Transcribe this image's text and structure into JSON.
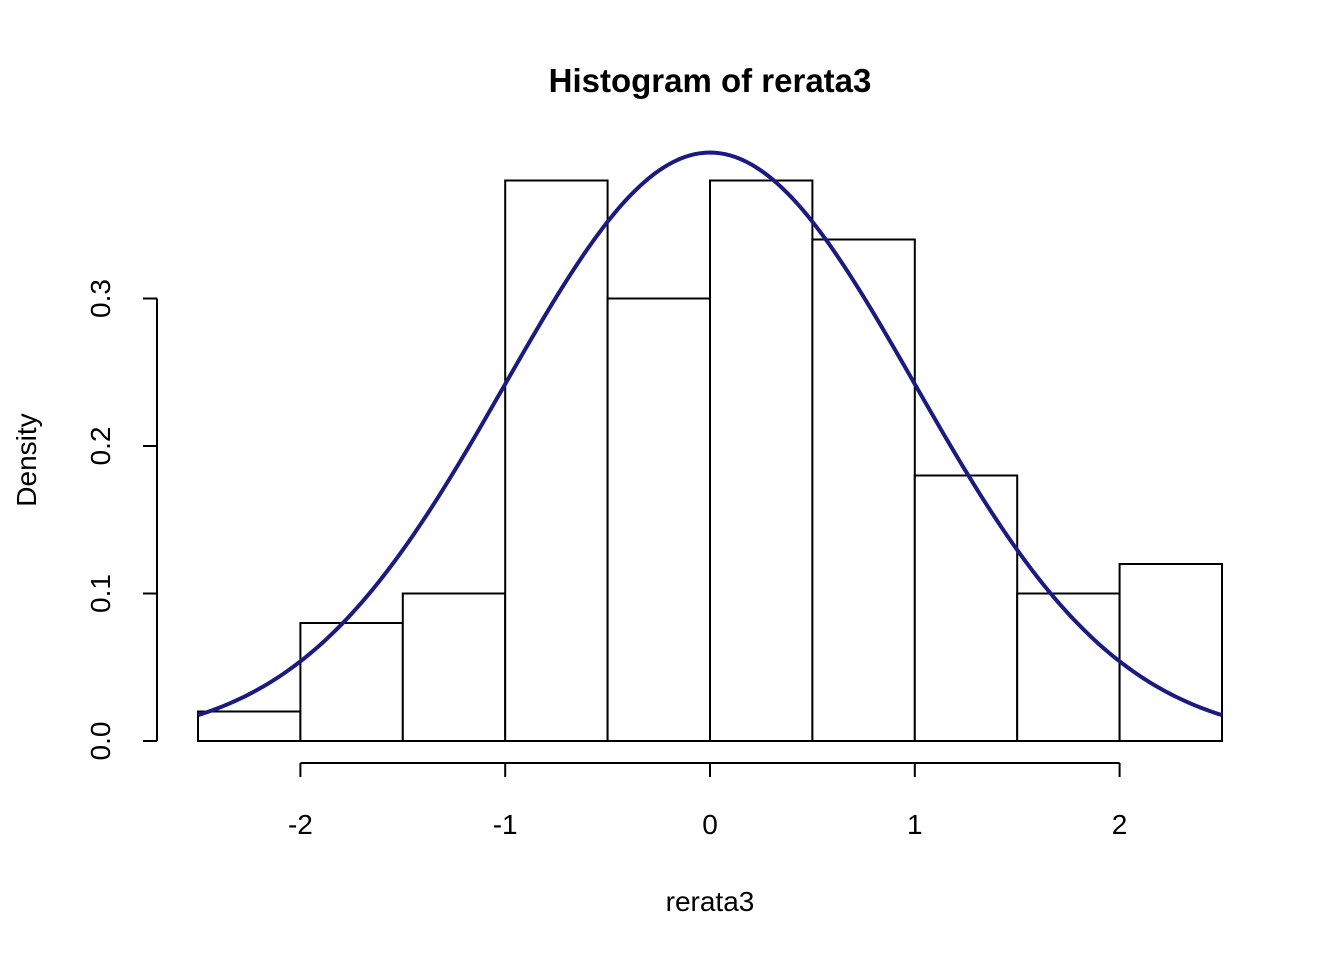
{
  "chart_data": {
    "type": "bar",
    "subtype": "histogram",
    "title": "Histogram of rerata3",
    "xlabel": "rerata3",
    "ylabel": "Density",
    "bins": [
      {
        "start": -2.5,
        "end": -2.0,
        "density": 0.02
      },
      {
        "start": -2.0,
        "end": -1.5,
        "density": 0.08
      },
      {
        "start": -1.5,
        "end": -1.0,
        "density": 0.1
      },
      {
        "start": -1.0,
        "end": -0.5,
        "density": 0.38
      },
      {
        "start": -0.5,
        "end": 0.0,
        "density": 0.3
      },
      {
        "start": 0.0,
        "end": 0.5,
        "density": 0.38
      },
      {
        "start": 0.5,
        "end": 1.0,
        "density": 0.34
      },
      {
        "start": 1.0,
        "end": 1.5,
        "density": 0.18
      },
      {
        "start": 1.5,
        "end": 2.0,
        "density": 0.1
      },
      {
        "start": 2.0,
        "end": 2.5,
        "density": 0.12
      }
    ],
    "x_ticks": [
      -2,
      -1,
      0,
      1,
      2
    ],
    "x_tick_labels": [
      "-2",
      "-1",
      "0",
      "1",
      "2"
    ],
    "y_ticks": [
      0.0,
      0.1,
      0.2,
      0.3
    ],
    "y_tick_labels": [
      "0.0",
      "0.1",
      "0.2",
      "0.3"
    ],
    "xlim": [
      -2.5,
      2.5
    ],
    "ylim": [
      0,
      0.4
    ],
    "overlay": {
      "type": "line",
      "distribution": "normal",
      "mean": 0,
      "sd": 1,
      "color": "#1a1a80"
    },
    "grid": false
  }
}
